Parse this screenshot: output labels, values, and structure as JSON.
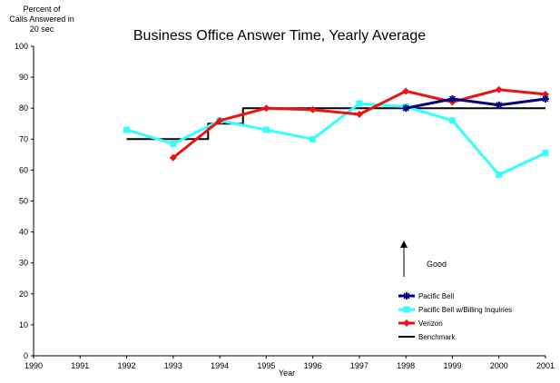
{
  "chart_data": {
    "type": "line",
    "title": "Business Office Answer Time, Yearly Average",
    "ylabel_lines": [
      "Percent of",
      "Calls Answered in",
      "20 sec"
    ],
    "xlabel": "Year",
    "x_ticks": [
      "1990",
      "1991",
      "1992",
      "1993",
      "1994",
      "1995",
      "1996",
      "1997",
      "1998",
      "1999",
      "2000",
      "2001"
    ],
    "y_ticks": [
      "0",
      "10",
      "20",
      "30",
      "40",
      "50",
      "60",
      "70",
      "80",
      "90",
      "100"
    ],
    "xlim": [
      1990,
      2001
    ],
    "ylim": [
      0,
      100
    ],
    "annotation": {
      "text": "Good"
    },
    "series": [
      {
        "name": "Pacific Bell",
        "color": "#000080",
        "marker": "star",
        "x": [
          1998,
          1999,
          2000,
          2001
        ],
        "y": [
          80,
          83,
          81,
          83
        ]
      },
      {
        "name": "Pacific Bell w/Billing Inquiries",
        "color": "#33ffff",
        "marker": "square",
        "x": [
          1992,
          1993,
          1994,
          1995,
          1996,
          1997,
          1998,
          1999,
          2000,
          2001
        ],
        "y": [
          73,
          68.5,
          76,
          73,
          70,
          81.5,
          80.5,
          76,
          58.5,
          65.5
        ]
      },
      {
        "name": "Verizon",
        "color": "#ee1111",
        "marker": "diamond",
        "x": [
          1993,
          1994,
          1995,
          1996,
          1997,
          1998,
          1999,
          2000,
          2001
        ],
        "y": [
          64,
          76,
          80,
          79.5,
          78,
          85.5,
          82,
          86,
          84.5
        ]
      },
      {
        "name": "Benchmark",
        "color": "#000000",
        "marker": "none",
        "step": true,
        "x": [
          1992,
          1993.75,
          1993.75,
          1994.5,
          1994.5,
          2001
        ],
        "y": [
          70,
          70,
          75,
          75,
          80,
          80
        ]
      }
    ]
  }
}
